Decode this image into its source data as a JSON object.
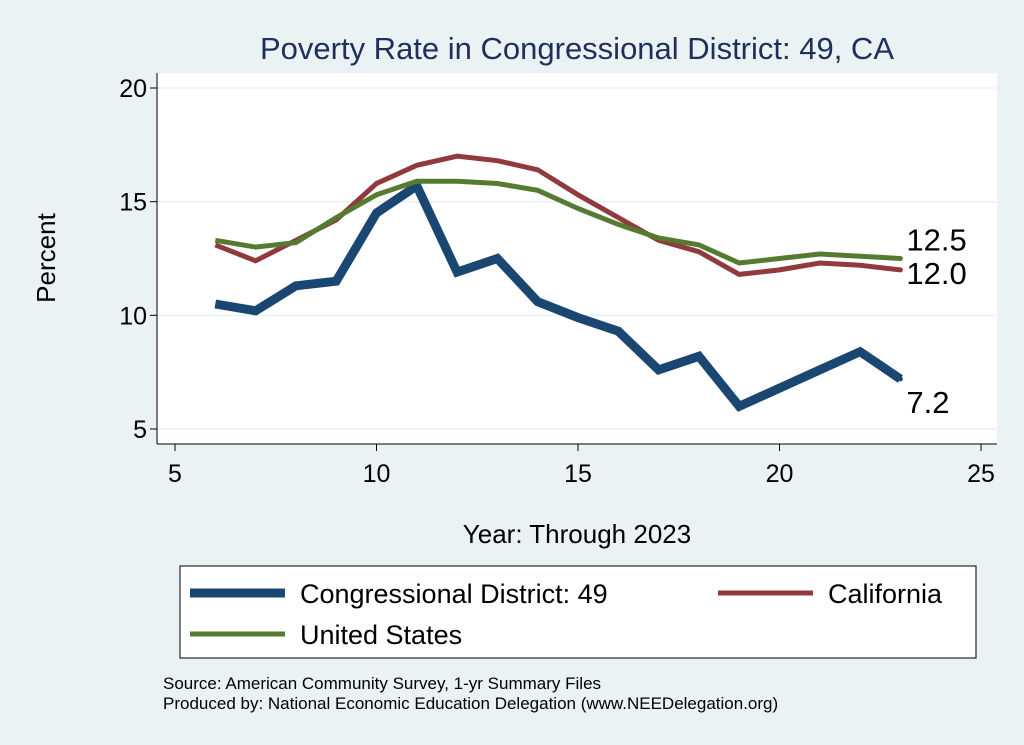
{
  "colors": {
    "background": "#eaf2f3",
    "plot_background": "#ffffff",
    "grid": "#eaf2f3",
    "title": "#1f2f5a",
    "text": "#000000"
  },
  "chart_data": {
    "type": "line",
    "title": "Poverty Rate in Congressional District:  49, CA",
    "xlabel": "Year: Through 2023",
    "ylabel": "Percent",
    "xlim": [
      5,
      25
    ],
    "ylim": [
      5,
      20
    ],
    "xticks": [
      5,
      10,
      15,
      20,
      25
    ],
    "yticks": [
      5,
      10,
      15,
      20
    ],
    "grid": true,
    "legend_position": "bottom",
    "series": [
      {
        "name": "Congressional District:  49",
        "color": "#1a4772",
        "line_width": "thick",
        "x": [
          6,
          7,
          8,
          9,
          10,
          11,
          12,
          13,
          14,
          15,
          16,
          17,
          18,
          19,
          20,
          21,
          22,
          23
        ],
        "values": [
          10.5,
          10.2,
          11.3,
          11.5,
          14.5,
          15.7,
          11.9,
          12.5,
          10.6,
          9.9,
          9.3,
          7.6,
          8.2,
          6.0,
          6.8,
          7.6,
          8.4,
          7.2
        ],
        "end_label": "7.2"
      },
      {
        "name": "California",
        "color": "#903a3d",
        "line_width": "medium",
        "x": [
          6,
          7,
          8,
          9,
          10,
          11,
          12,
          13,
          14,
          15,
          16,
          17,
          18,
          19,
          20,
          21,
          22,
          23
        ],
        "values": [
          13.1,
          12.4,
          13.3,
          14.2,
          15.8,
          16.6,
          17.0,
          16.8,
          16.4,
          15.3,
          14.3,
          13.3,
          12.8,
          11.8,
          12.0,
          12.3,
          12.2,
          12.0
        ],
        "end_label": "12.0"
      },
      {
        "name": "United States",
        "color": "#557a30",
        "line_width": "medium",
        "x": [
          6,
          7,
          8,
          9,
          10,
          11,
          12,
          13,
          14,
          15,
          16,
          17,
          18,
          19,
          20,
          21,
          22,
          23
        ],
        "values": [
          13.3,
          13.0,
          13.2,
          14.3,
          15.3,
          15.9,
          15.9,
          15.8,
          15.5,
          14.7,
          14.0,
          13.4,
          13.1,
          12.3,
          12.5,
          12.7,
          12.6,
          12.5
        ],
        "end_label": "12.5"
      }
    ],
    "notes": [
      "Source: American Community Survey, 1-yr Summary Files",
      "Produced by: National Economic Education Delegation (www.NEEDelegation.org)"
    ]
  }
}
